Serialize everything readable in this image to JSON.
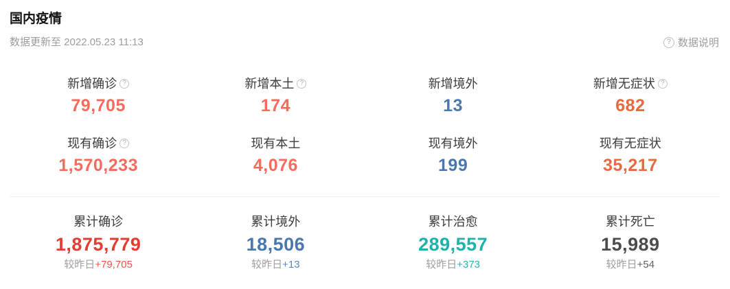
{
  "header": {
    "title": "国内疫情",
    "updated_text": "数据更新至 2022.05.23 11:13",
    "help_label": "数据说明",
    "help_icon_glyph": "?"
  },
  "colors": {
    "new_confirmed_red": "#f76a5c",
    "asymptomatic_orange": "#e8693f",
    "imported_blue": "#4a77ad",
    "cumulative_red": "#e23c33",
    "cured_teal": "#1fb2aa",
    "death_dark": "#4c4c4c"
  },
  "stats": {
    "change_prefix": "较昨日",
    "cells": [
      {
        "label": "新增确诊",
        "has_help": true,
        "value": "79,705",
        "color": "#f76a5c"
      },
      {
        "label": "新增本土",
        "has_help": true,
        "value": "174",
        "color": "#f76a5c"
      },
      {
        "label": "新增境外",
        "has_help": false,
        "value": "13",
        "color": "#4a77ad"
      },
      {
        "label": "新增无症状",
        "has_help": true,
        "value": "682",
        "color": "#e8693f"
      },
      {
        "label": "现有确诊",
        "has_help": true,
        "value": "1,570,233",
        "color": "#f76a5c"
      },
      {
        "label": "现有本土",
        "has_help": false,
        "value": "4,076",
        "color": "#f76a5c"
      },
      {
        "label": "现有境外",
        "has_help": false,
        "value": "199",
        "color": "#4a77ad"
      },
      {
        "label": "现有无症状",
        "has_help": false,
        "value": "35,217",
        "color": "#e8693f"
      },
      {
        "label": "累计确诊",
        "value": "1,875,779",
        "color": "#e23c33",
        "change": "+79,705",
        "change_color": "#f0524a"
      },
      {
        "label": "累计境外",
        "value": "18,506",
        "color": "#4a77ad",
        "change": "+13",
        "change_color": "#5b87b8"
      },
      {
        "label": "累计治愈",
        "value": "289,557",
        "color": "#1fb2aa",
        "change": "+373",
        "change_color": "#2eb5ad"
      },
      {
        "label": "累计死亡",
        "value": "15,989",
        "color": "#4c4c4c",
        "change": "+54",
        "change_color": "#5f5f5f"
      }
    ]
  }
}
